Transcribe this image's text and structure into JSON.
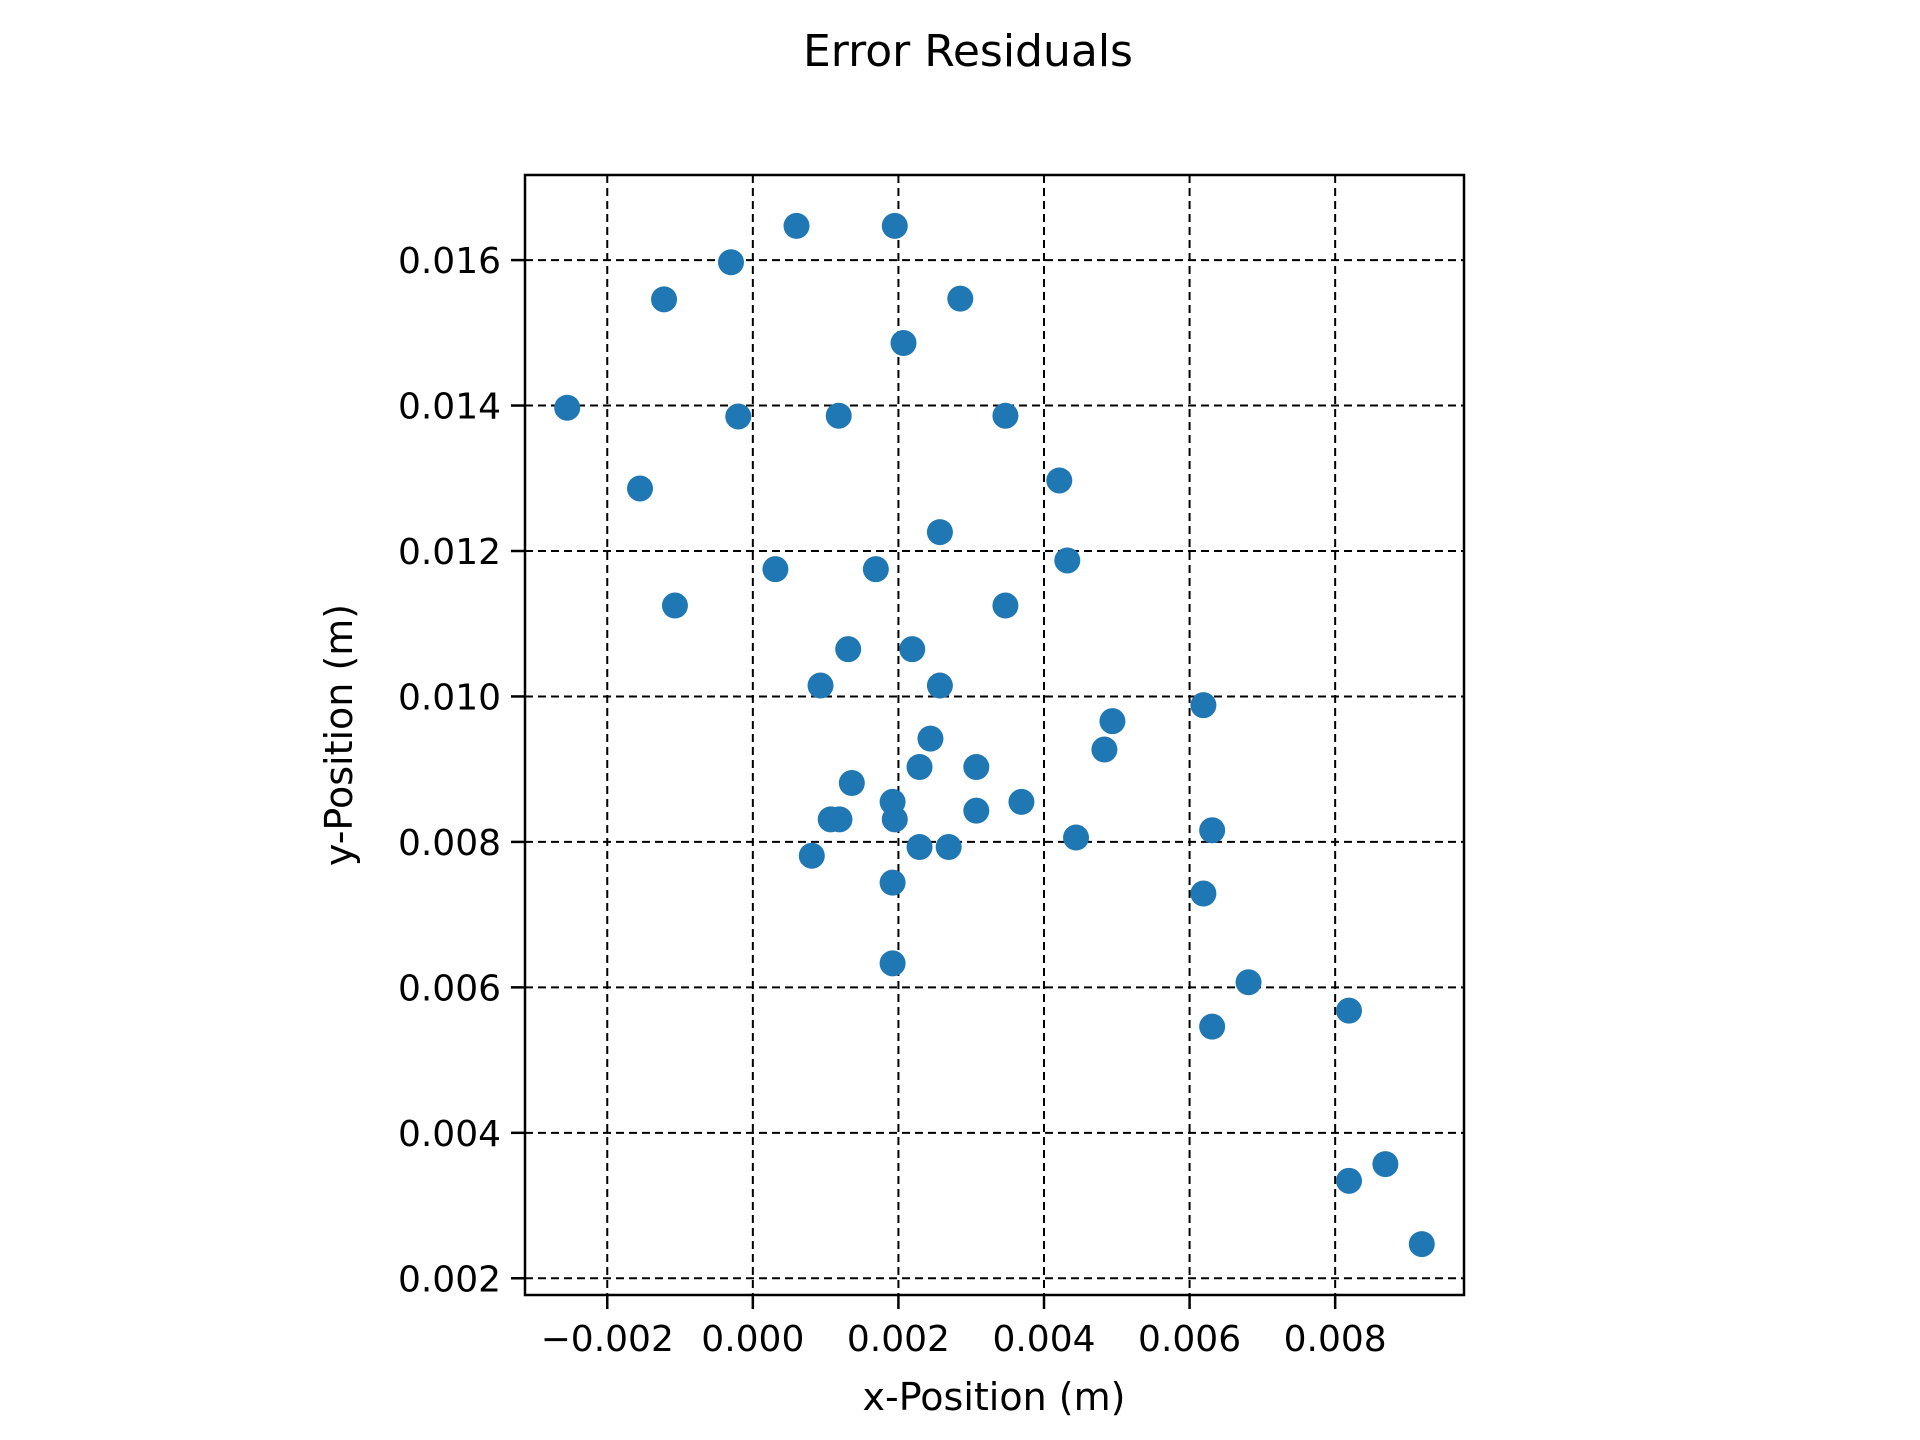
{
  "chart_data": {
    "type": "scatter",
    "title": "Error Residuals",
    "xlabel": "x-Position (m)",
    "ylabel": "y-Position (m)",
    "xlim": [
      -0.00313,
      0.00977
    ],
    "ylim": [
      0.00177,
      0.01717
    ],
    "grid": true,
    "legend": "none",
    "xticks": [
      -0.002,
      0.0,
      0.002,
      0.004,
      0.006,
      0.008
    ],
    "xtick_labels": [
      "−0.002",
      "0.000",
      "0.002",
      "0.004",
      "0.006",
      "0.008"
    ],
    "yticks": [
      0.002,
      0.004,
      0.006,
      0.008,
      0.01,
      0.012,
      0.014,
      0.016
    ],
    "ytick_labels": [
      "0.002",
      "0.004",
      "0.006",
      "0.008",
      "0.010",
      "0.012",
      "0.014",
      "0.016"
    ],
    "marker_color": "#1f77b4",
    "series": [
      {
        "points": [
          [
            -0.00255,
            0.01397
          ],
          [
            -0.00122,
            0.01546
          ],
          [
            -0.00155,
            0.01286
          ],
          [
            -0.00107,
            0.01125
          ],
          [
            -0.0003,
            0.01597
          ],
          [
            -0.0002,
            0.01385
          ],
          [
            0.0006,
            0.01647
          ],
          [
            0.00195,
            0.01647
          ],
          [
            0.00285,
            0.01547
          ],
          [
            0.00207,
            0.01486
          ],
          [
            0.00118,
            0.01386
          ],
          [
            0.00347,
            0.01386
          ],
          [
            0.00421,
            0.01297
          ],
          [
            0.00257,
            0.01226
          ],
          [
            0.00031,
            0.01175
          ],
          [
            0.00169,
            0.01175
          ],
          [
            0.00432,
            0.01187
          ],
          [
            0.00347,
            0.01125
          ],
          [
            0.00131,
            0.01065
          ],
          [
            0.00219,
            0.01065
          ],
          [
            0.00093,
            0.01015
          ],
          [
            0.00257,
            0.01015
          ],
          [
            0.00619,
            0.00988
          ],
          [
            0.00494,
            0.00966
          ],
          [
            0.00483,
            0.00927
          ],
          [
            0.00244,
            0.00942
          ],
          [
            0.00229,
            0.00903
          ],
          [
            0.00307,
            0.00903
          ],
          [
            0.00136,
            0.00881
          ],
          [
            0.00369,
            0.00855
          ],
          [
            0.00192,
            0.00855
          ],
          [
            0.00307,
            0.00843
          ],
          [
            0.00107,
            0.00831
          ],
          [
            0.00119,
            0.00831
          ],
          [
            0.00195,
            0.00831
          ],
          [
            0.00631,
            0.00816
          ],
          [
            0.00444,
            0.00806
          ],
          [
            0.00229,
            0.00793
          ],
          [
            0.00269,
            0.00793
          ],
          [
            0.00081,
            0.00781
          ],
          [
            0.00192,
            0.00744
          ],
          [
            0.00619,
            0.00729
          ],
          [
            0.00192,
            0.00633
          ],
          [
            0.00681,
            0.00607
          ],
          [
            0.00819,
            0.00568
          ],
          [
            0.00631,
            0.00546
          ],
          [
            0.00869,
            0.00357
          ],
          [
            0.00819,
            0.00334
          ],
          [
            0.00919,
            0.00247
          ]
        ]
      }
    ]
  }
}
